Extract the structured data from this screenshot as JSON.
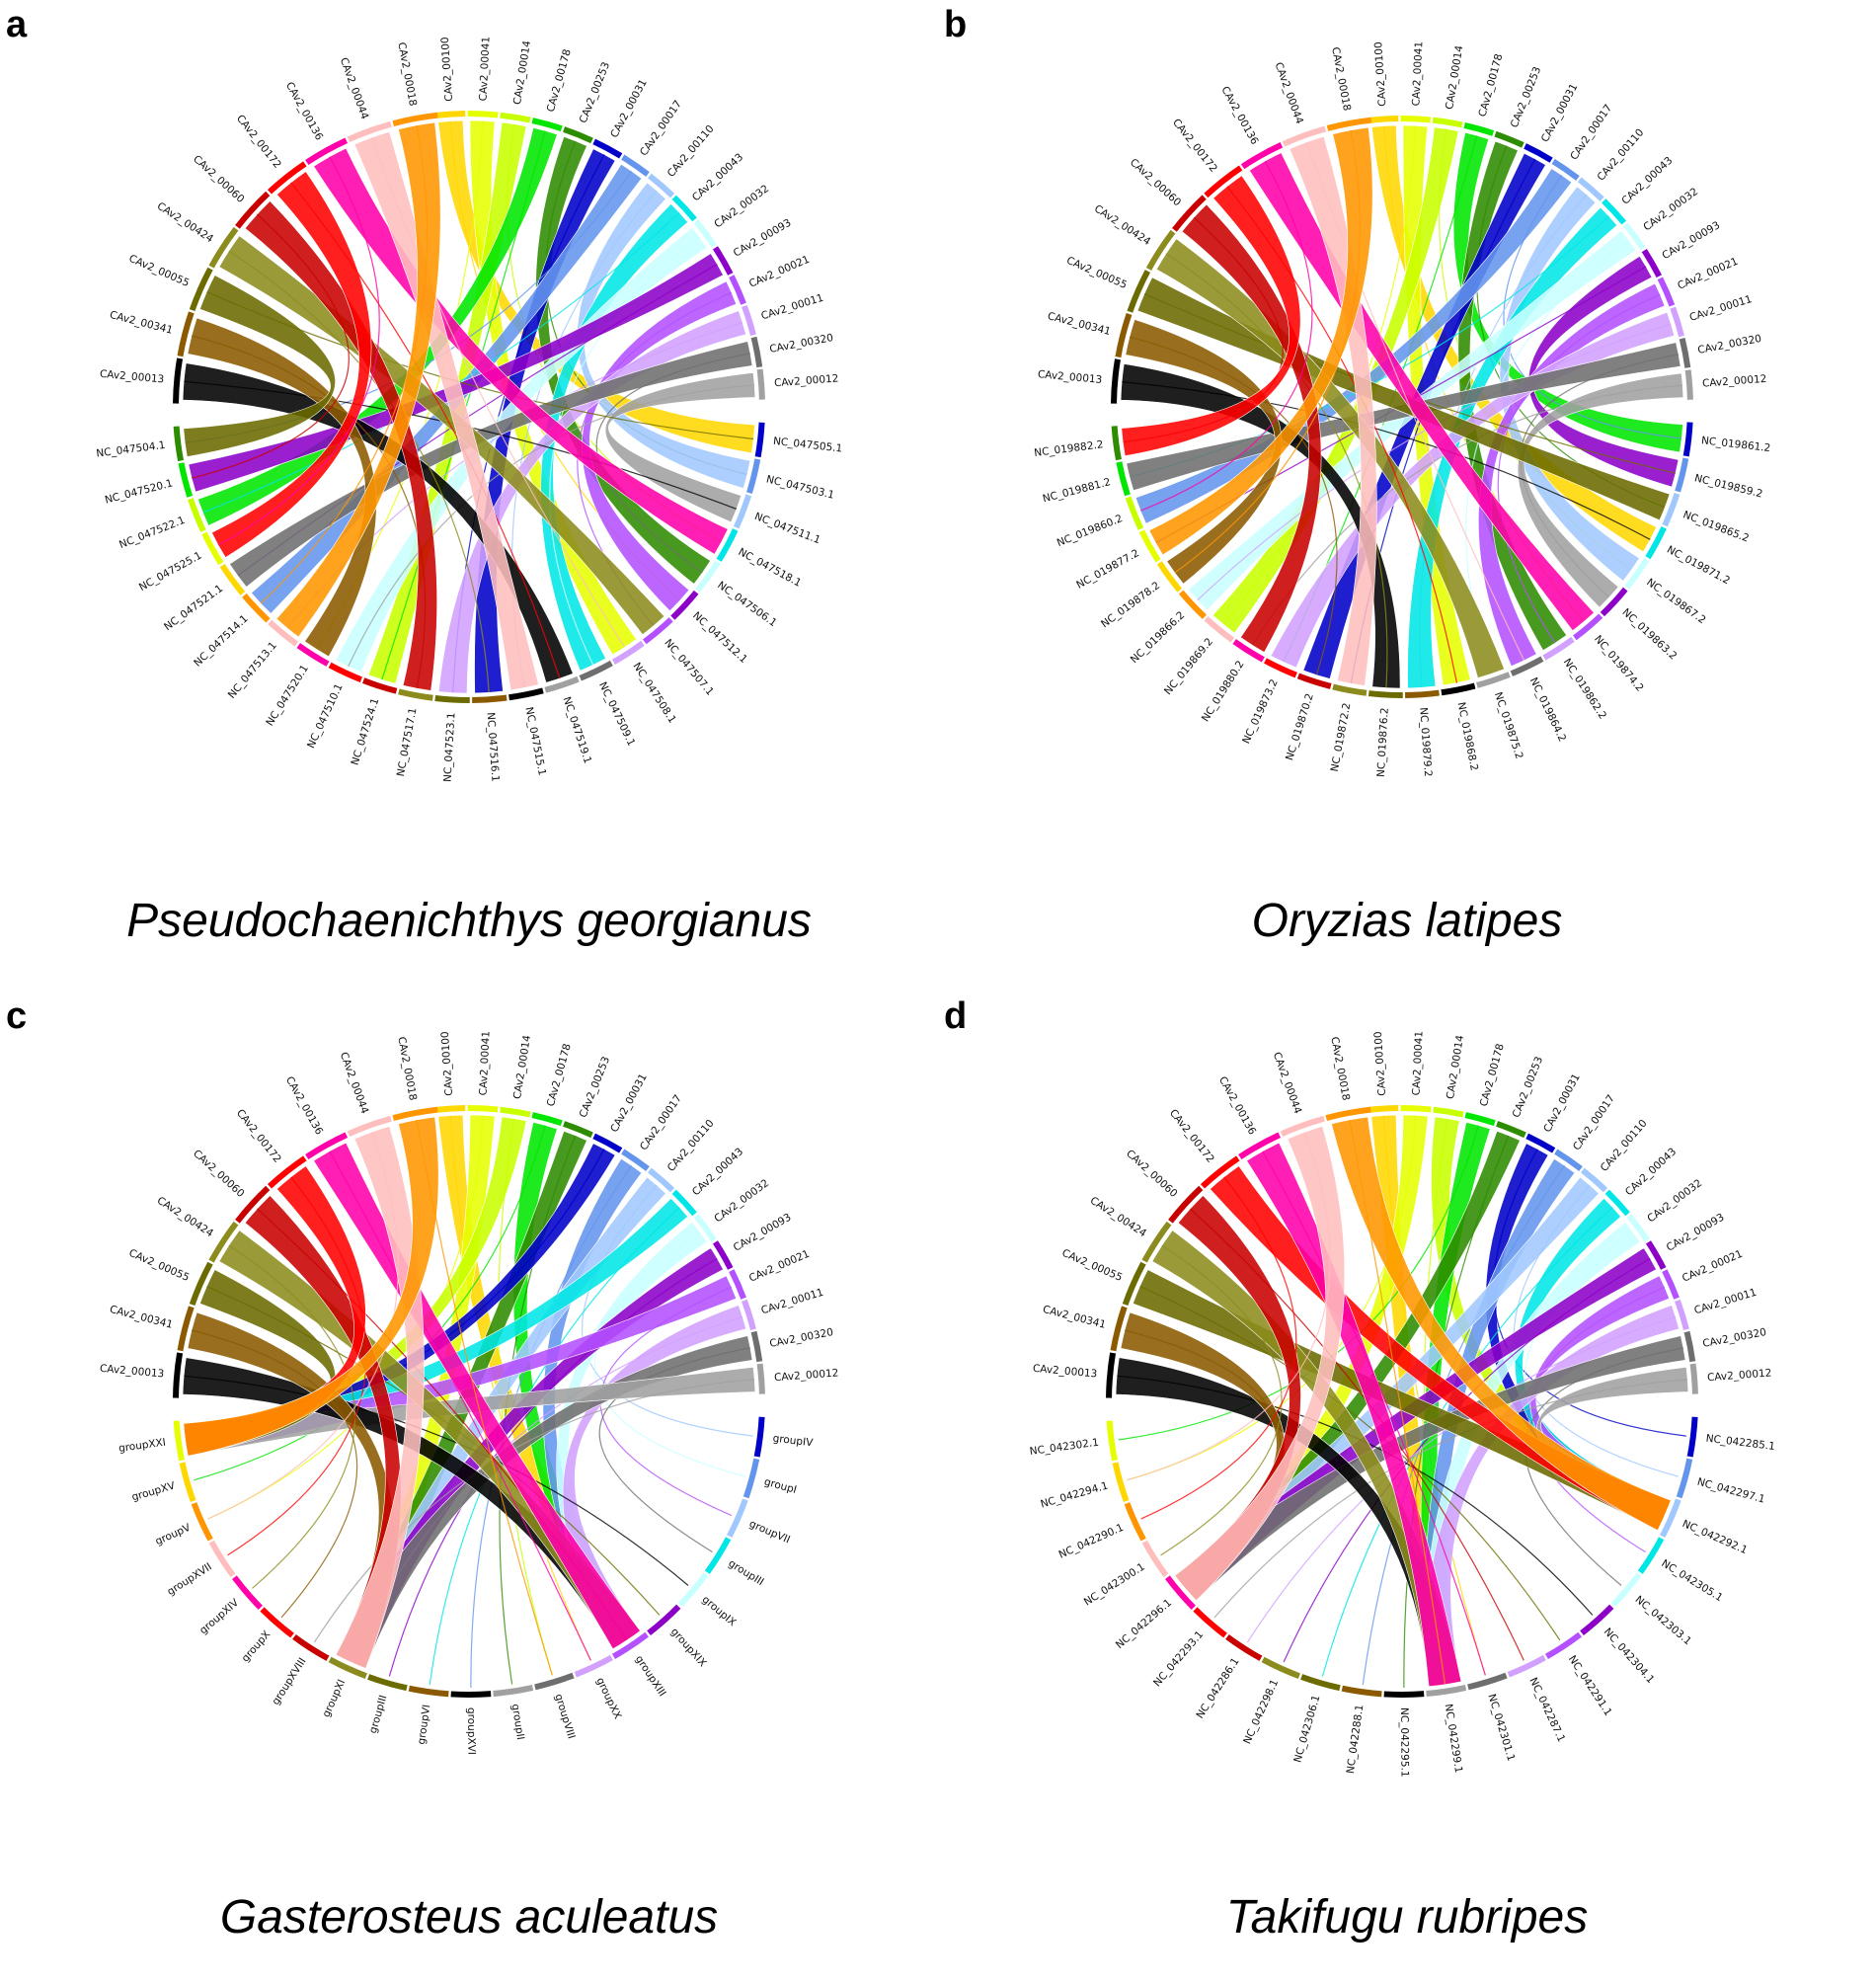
{
  "panels": [
    {
      "letter": "a",
      "species": "Pseudochaenichthys georgianus",
      "left_segments": [
        "CAv2_00100",
        "CAv2_00041",
        "CAv2_00014",
        "CAv2_00178",
        "CAv2_00253",
        "CAv2_00031",
        "CAv2_00017",
        "CAv2_00110",
        "CAv2_00043",
        "CAv2_00032",
        "CAv2_00093",
        "CAv2_00021",
        "CAv2_00011",
        "CAv2_00320",
        "CAv2_00012"
      ],
      "right_segments": [
        "NC_047505.1",
        "NC_047503.1",
        "NC_047511.1",
        "NC_047518.1",
        "NC_047506.1",
        "NC_047512.1",
        "NC_047507.1",
        "NC_047508.1",
        "NC_047509.1",
        "NC_047519.1",
        "NC_047515.1",
        "NC_047516.1",
        "NC_047523.1",
        "NC_047517.1",
        "NC_047524.1",
        "NC_047510.1",
        "NC_047520.1",
        "NC_047513.1",
        "NC_047514.1",
        "NC_047521.1",
        "NC_047525.1",
        "NC_047522.1",
        "NC_047520.1",
        "NC_047504.1"
      ],
      "tail_segments": [
        "CAv2_00013",
        "CAv2_00341",
        "CAv2_00055",
        "CAv2_00424",
        "CAv2_00060",
        "CAv2_00172",
        "CAv2_00136",
        "CAv2_00044",
        "CAv2_00018"
      ]
    },
    {
      "letter": "b",
      "species": "Oryzias latipes",
      "left_segments": [
        "CAv2_00100",
        "CAv2_00041",
        "CAv2_00014",
        "CAv2_00178",
        "CAv2_00253",
        "CAv2_00031",
        "CAv2_00017",
        "CAv2_00110",
        "CAv2_00043",
        "CAv2_00032",
        "CAv2_00093",
        "CAv2_00021",
        "CAv2_00011",
        "CAv2_00320",
        "CAv2_00012"
      ],
      "right_segments": [
        "NC_019861.2",
        "NC_019859.2",
        "NC_019865.2",
        "NC_019871.2",
        "NC_019867.2",
        "NC_019863.2",
        "NC_019874.2",
        "NC_019862.2",
        "NC_019864.2",
        "NC_019875.2",
        "NC_019868.2",
        "NC_019879.2",
        "NC_019876.2",
        "NC_019872.2",
        "NC_019870.2",
        "NC_019873.2",
        "NC_019880.2",
        "NC_019869.2",
        "NC_019866.2",
        "NC_019878.2",
        "NC_019877.2",
        "NC_019860.2",
        "NC_019881.2",
        "NC_019882.2"
      ],
      "tail_segments": [
        "CAv2_00013",
        "CAv2_00341",
        "CAv2_00055",
        "CAv2_00424",
        "CAv2_00060",
        "CAv2_00172",
        "CAv2_00136",
        "CAv2_00044",
        "CAv2_00018"
      ]
    },
    {
      "letter": "c",
      "species": "Gasterosteus aculeatus",
      "left_segments": [
        "CAv2_00100",
        "CAv2_00041",
        "CAv2_00014",
        "CAv2_00178",
        "CAv2_00253",
        "CAv2_00031",
        "CAv2_00017",
        "CAv2_00110",
        "CAv2_00043",
        "CAv2_00032",
        "CAv2_00093",
        "CAv2_00021",
        "CAv2_00011",
        "CAv2_00320",
        "CAv2_00012"
      ],
      "right_segments": [
        "groupIV",
        "groupI",
        "groupVII",
        "groupIII",
        "groupIX",
        "groupXIX",
        "groupXIII",
        "groupXX",
        "groupVIII",
        "groupII",
        "groupXVI",
        "groupVI",
        "groupIII",
        "groupXI",
        "groupXVIII",
        "groupX",
        "groupXIV",
        "groupXVII",
        "groupV",
        "groupXV",
        "groupXXI"
      ],
      "tail_segments": [
        "CAv2_00013",
        "CAv2_00341",
        "CAv2_00055",
        "CAv2_00424",
        "CAv2_00060",
        "CAv2_00172",
        "CAv2_00136",
        "CAv2_00044",
        "CAv2_00018"
      ]
    },
    {
      "letter": "d",
      "species": "Takifugu rubripes",
      "left_segments": [
        "CAv2_00100",
        "CAv2_00041",
        "CAv2_00014",
        "CAv2_00178",
        "CAv2_00253",
        "CAv2_00031",
        "CAv2_00017",
        "CAv2_00110",
        "CAv2_00043",
        "CAv2_00032",
        "CAv2_00093",
        "CAv2_00021",
        "CAv2_00011",
        "CAv2_00320",
        "CAv2_00012"
      ],
      "right_segments": [
        "NC_042285.1",
        "NC_042297.1",
        "NC_042292.1",
        "NC_042305.1",
        "NC_042303.1",
        "NC_042304.1",
        "NC_042291.1",
        "NC_042287.1",
        "NC_042301.1",
        "NC_042299.1",
        "NC_042295.1",
        "NC_042288.1",
        "NC_042306.1",
        "NC_042298.1",
        "NC_042286.1",
        "NC_042293.1",
        "NC_042296.1",
        "NC_042300.1",
        "NC_042290.1",
        "NC_042294.1",
        "NC_042302.1"
      ],
      "tail_segments": [
        "CAv2_00013",
        "CAv2_00341",
        "CAv2_00055",
        "CAv2_00424",
        "CAv2_00060",
        "CAv2_00172",
        "CAv2_00136",
        "CAv2_00044",
        "CAv2_00018"
      ]
    }
  ],
  "palette": [
    "#ffd700",
    "#e6ff00",
    "#c8ff00",
    "#00e600",
    "#2d8c00",
    "#0000c8",
    "#6495ed",
    "#a0c8ff",
    "#00e6e6",
    "#c8ffff",
    "#8c00c8",
    "#b450ff",
    "#d2a0ff",
    "#6e6e6e",
    "#a0a0a0",
    "#000000",
    "#8b5a00",
    "#6b6b00",
    "#8c8c1e",
    "#c80000",
    "#ff0000",
    "#ff00aa",
    "#ffbebe",
    "#ff9600"
  ],
  "chart_data": {
    "type": "circos",
    "description_note": "Four circos synteny plots; CAv2 contigs on one half of each ring, chromosomes of the compared species on the other half, ribbons link homologous regions."
  }
}
